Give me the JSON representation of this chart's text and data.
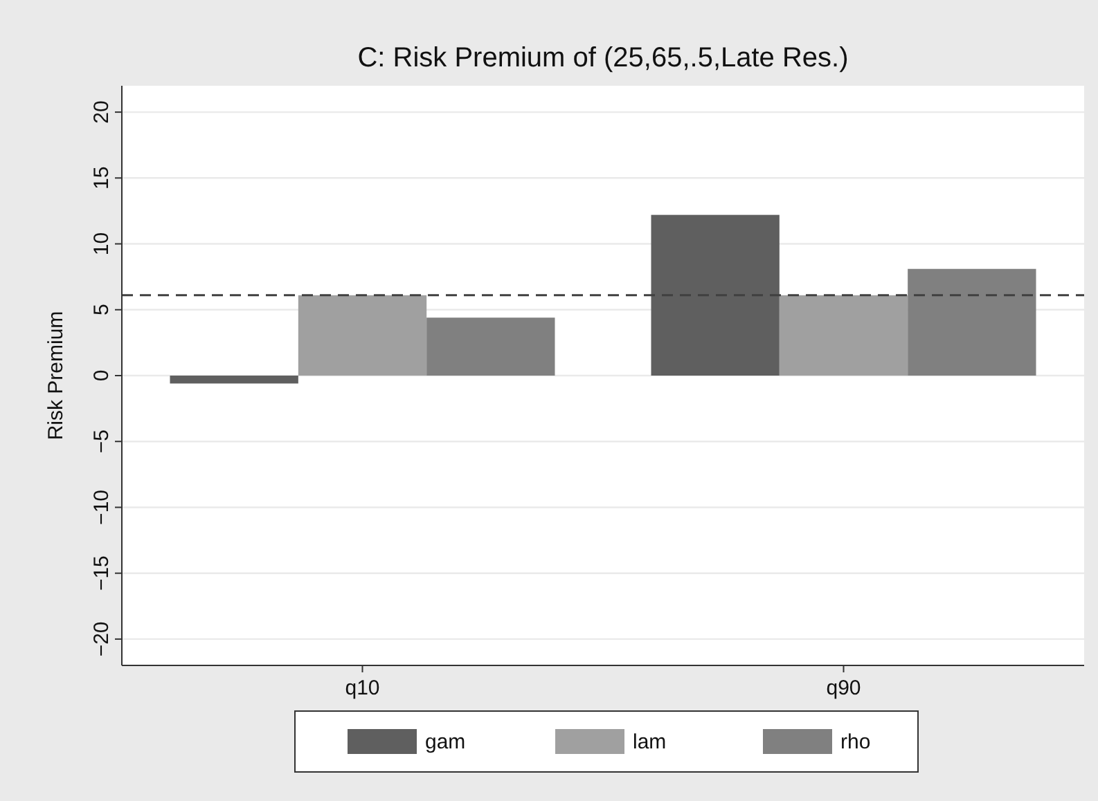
{
  "chart_data": {
    "type": "bar",
    "title": "C: Risk Premium of (25,65,.5,Late Res.)",
    "ylabel": "Risk Premium",
    "categories": [
      "q10",
      "q90"
    ],
    "series": [
      {
        "name": "gam",
        "color": "#5f5f5f",
        "values": [
          -0.6,
          12.2
        ]
      },
      {
        "name": "lam",
        "color": "#a0a0a0",
        "values": [
          6.1,
          6.1
        ]
      },
      {
        "name": "rho",
        "color": "#808080",
        "values": [
          4.4,
          8.1
        ]
      }
    ],
    "ylim": [
      -22,
      22
    ],
    "yticks": [
      -20,
      -15,
      -10,
      -5,
      0,
      5,
      10,
      15,
      20
    ],
    "grid": "y",
    "legend": "bottom",
    "ref_lines": [
      {
        "axis": "y",
        "value": 6.1,
        "line_style": "dashed",
        "color": "#404040"
      }
    ]
  }
}
